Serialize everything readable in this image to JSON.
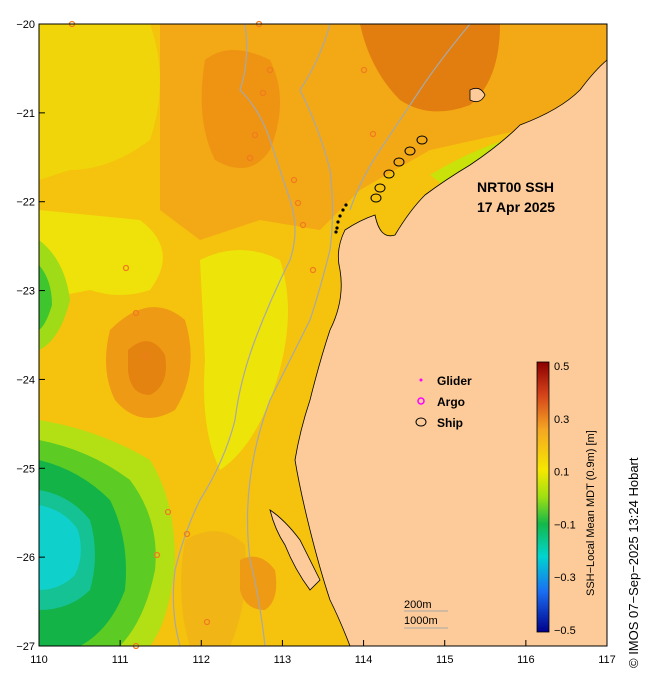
{
  "map": {
    "title": "NRT00 SSH",
    "date": "17 Apr 2025",
    "credit": "© IMOS 07−Sep−2025 13:24 Hobart",
    "x_ticks": [
      "110",
      "111",
      "112",
      "113",
      "114",
      "115",
      "116",
      "117"
    ],
    "y_ticks": [
      "−20",
      "−21",
      "−22",
      "−23",
      "−24",
      "−25",
      "−26",
      "−27"
    ],
    "lon_range": [
      110,
      117
    ],
    "lat_range": [
      -27,
      -20
    ],
    "legend": {
      "glider": "Glider",
      "argo": "Argo",
      "ship": "Ship"
    },
    "isobaths": [
      "200m",
      "1000m"
    ],
    "colorbar": {
      "title": "SSH−Local Mean MDT (0.9m) [m]",
      "ticks": [
        "0.5",
        "0.3",
        "0.1",
        "−0.1",
        "−0.3",
        "−0.5"
      ],
      "range": [
        -0.5,
        0.5
      ]
    },
    "colors": {
      "land": "#fdcb99",
      "coast": "#000000",
      "isobath": "#a8a8a8",
      "argo": "#ff00ff",
      "ship": "#000000"
    }
  }
}
